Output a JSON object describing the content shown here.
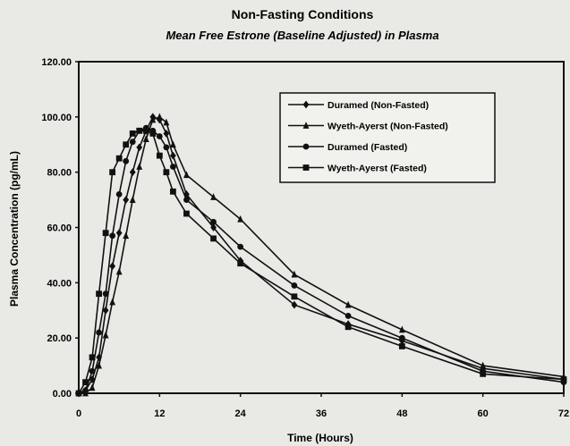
{
  "chart_data": {
    "type": "line",
    "title": "Non-Fasting Conditions",
    "subtitle": "Mean Free Estrone (Baseline Adjusted) in Plasma",
    "xlabel": "Time (Hours)",
    "ylabel": "Plasma Concentration (pg/mL)",
    "xlim": [
      0,
      72
    ],
    "ylim": [
      0,
      120
    ],
    "xticks": [
      0,
      12,
      24,
      36,
      48,
      60,
      72
    ],
    "xtick_labels": [
      "0",
      "12",
      "24",
      "36",
      "48",
      "60",
      "72"
    ],
    "yticks": [
      0,
      20,
      40,
      60,
      80,
      100,
      120
    ],
    "ytick_labels": [
      "0.00",
      "20.00",
      "40.00",
      "60.00",
      "80.00",
      "100.00",
      "120.00"
    ],
    "grid": false,
    "legend_position": "top-right",
    "series": [
      {
        "name": "Duramed (Non-Fasted)",
        "marker": "diamond",
        "x": [
          0,
          1,
          2,
          3,
          4,
          5,
          6,
          7,
          8,
          9,
          10,
          11,
          12,
          13,
          14,
          16,
          20,
          24,
          32,
          40,
          48,
          60,
          72
        ],
        "y": [
          0,
          1,
          5,
          13,
          30,
          46,
          58,
          70,
          80,
          89,
          95,
          100,
          99,
          94,
          86,
          72,
          60,
          48,
          32,
          25,
          19,
          9,
          5
        ]
      },
      {
        "name": "Wyeth-Ayerst (Non-Fasted)",
        "marker": "triangle",
        "x": [
          0,
          1,
          2,
          3,
          4,
          5,
          6,
          7,
          8,
          9,
          10,
          11,
          12,
          13,
          14,
          16,
          20,
          24,
          32,
          40,
          48,
          60,
          72
        ],
        "y": [
          0,
          0,
          2,
          10,
          21,
          33,
          44,
          57,
          70,
          82,
          92,
          99,
          100,
          98,
          90,
          79,
          71,
          63,
          43,
          32,
          23,
          10,
          6
        ]
      },
      {
        "name": "Duramed (Fasted)",
        "marker": "circle",
        "x": [
          0,
          1,
          2,
          3,
          4,
          5,
          6,
          7,
          8,
          9,
          10,
          11,
          12,
          13,
          14,
          16,
          20,
          24,
          32,
          40,
          48,
          60,
          72
        ],
        "y": [
          0,
          1,
          8,
          22,
          36,
          57,
          72,
          84,
          91,
          95,
          96,
          95,
          93,
          89,
          82,
          70,
          62,
          53,
          39,
          28,
          20,
          8,
          4
        ]
      },
      {
        "name": "Wyeth-Ayerst (Fasted)",
        "marker": "square",
        "x": [
          0,
          1,
          2,
          3,
          4,
          5,
          6,
          7,
          8,
          9,
          10,
          11,
          12,
          13,
          14,
          16,
          20,
          24,
          32,
          40,
          48,
          60,
          72
        ],
        "y": [
          0,
          4,
          13,
          36,
          58,
          80,
          85,
          90,
          94,
          95,
          95,
          94,
          86,
          80,
          73,
          65,
          56,
          47,
          35,
          24,
          17,
          7,
          5
        ]
      }
    ]
  }
}
